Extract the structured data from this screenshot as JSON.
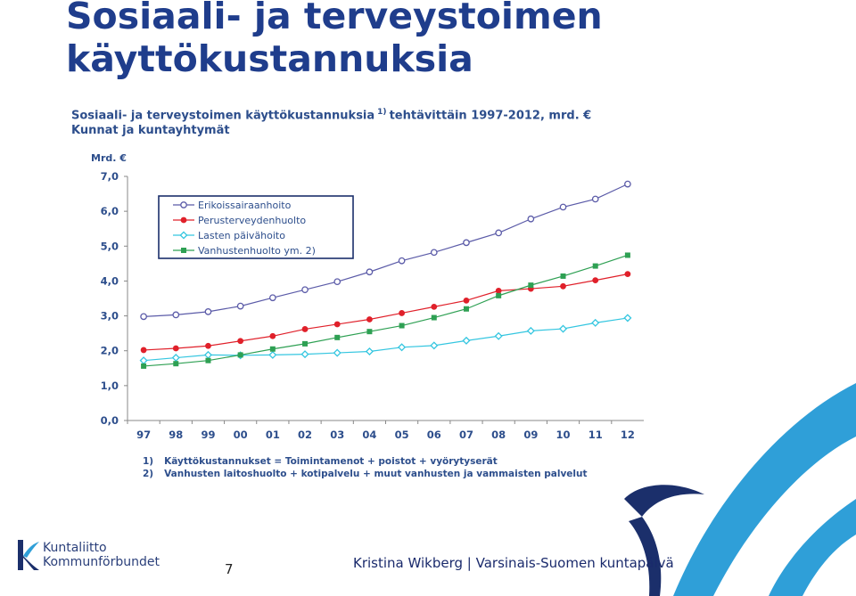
{
  "slide": {
    "title_line1": "Sosiaali- ja terveystoimen",
    "title_line2": "käyttökustannuksia",
    "page_number": "7",
    "footer": "Kristina Wikberg | Varsinais-Suomen kuntapäivä",
    "logo_line1": "Kuntaliitto",
    "logo_line2": "Kommunförbundet"
  },
  "chart_data": {
    "type": "line",
    "title": "Sosiaali- ja terveystoimen käyttökustannuksia",
    "title_sup": "1)",
    "title_tail": "tehtävittäin 1997-2012, mrd. €",
    "subtitle": "Kunnat ja kuntayhtymät",
    "ylabel": "Mrd. €",
    "ylim": [
      0,
      7
    ],
    "yticks": [
      "0,0",
      "1,0",
      "2,0",
      "3,0",
      "4,0",
      "5,0",
      "6,0",
      "7,0"
    ],
    "categories": [
      "97",
      "98",
      "99",
      "00",
      "01",
      "02",
      "03",
      "04",
      "05",
      "06",
      "07",
      "08",
      "09",
      "10",
      "11",
      "12"
    ],
    "grid": false,
    "legend_position": "top-left",
    "series": [
      {
        "name": "Erikoissairaanhoito",
        "color": "#5b5ba8",
        "marker": "circle-open",
        "values": [
          2.98,
          3.03,
          3.12,
          3.28,
          3.52,
          3.75,
          3.98,
          4.26,
          4.58,
          4.82,
          5.1,
          5.38,
          5.78,
          6.12,
          6.35,
          6.78
        ]
      },
      {
        "name": "Perusterveydenhuolto",
        "color": "#e0202a",
        "marker": "circle-filled",
        "values": [
          2.02,
          2.07,
          2.14,
          2.28,
          2.42,
          2.62,
          2.76,
          2.9,
          3.08,
          3.26,
          3.44,
          3.72,
          3.78,
          3.85,
          4.02,
          4.2
        ]
      },
      {
        "name": "Lasten päivähoito",
        "color": "#34c6e0",
        "marker": "diamond-open",
        "values": [
          1.72,
          1.8,
          1.88,
          1.87,
          1.88,
          1.9,
          1.94,
          1.98,
          2.1,
          2.15,
          2.29,
          2.42,
          2.57,
          2.63,
          2.8,
          2.94
        ]
      },
      {
        "name": "Vanhustenhuolto ym. 2)",
        "color": "#2ea053",
        "marker": "square-filled",
        "values": [
          1.56,
          1.63,
          1.72,
          1.88,
          2.05,
          2.2,
          2.38,
          2.55,
          2.72,
          2.95,
          3.2,
          3.58,
          3.88,
          4.14,
          4.43,
          4.74
        ]
      }
    ],
    "footnotes": [
      {
        "mark": "1)",
        "text": "Käyttökustannukset = Toimintamenot + poistot + vyörytyserät"
      },
      {
        "mark": "2)",
        "text": "Vanhusten laitoshuolto + kotipalvelu + muut vanhusten ja vammaisten palvelut"
      }
    ]
  },
  "colors": {
    "title": "#1f3d8c",
    "chart_text": "#2d4e8c",
    "deco_dark": "#1b2f6b",
    "deco_light": "#2f9fd8"
  }
}
